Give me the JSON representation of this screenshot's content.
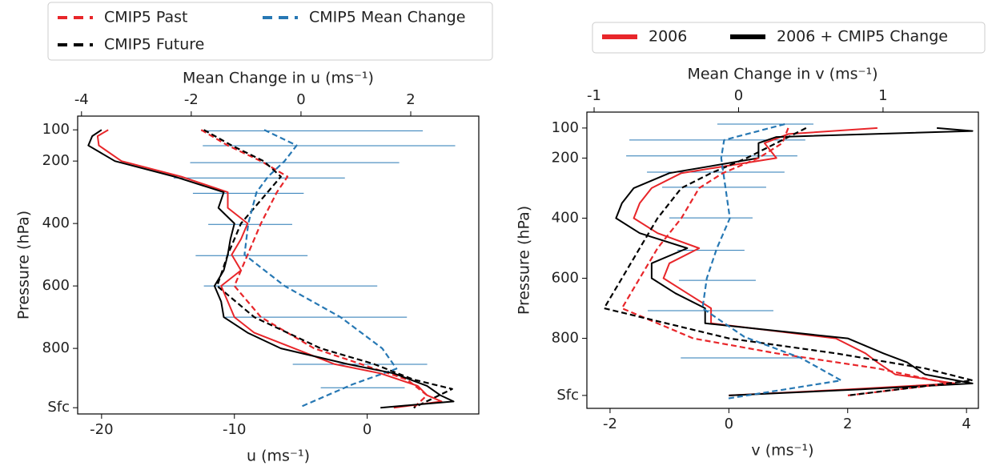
{
  "chart_data": [
    {
      "type": "line",
      "xlabel": "u (ms⁻¹)",
      "x2label": "Mean Change in u (ms⁻¹)",
      "ylabel": "Pressure (hPa)",
      "xlim": [
        -21.8,
        8.4
      ],
      "xticks": [
        -20,
        -10,
        0
      ],
      "x2lim": [
        -4.07,
        3.24
      ],
      "x2ticks": [
        -4,
        -2,
        0,
        2
      ],
      "ylim": [
        1010,
        56
      ],
      "yticks": [
        100,
        200,
        400,
        600,
        800,
        {
          "value": 990,
          "label": "Sfc"
        }
      ],
      "legend": "top-left",
      "series": [
        {
          "name": "CMIP5 Past",
          "color": "#e8262a",
          "style": "dashed",
          "x": [
            -12.5,
            -10.5,
            -8.0,
            -6.0,
            -6.8,
            -8.0,
            -9.0,
            -10.0,
            -8.0,
            -4.0,
            -0.5,
            3.0,
            4.5,
            3.5
          ],
          "y": [
            100,
            150,
            200,
            250,
            300,
            400,
            500,
            600,
            700,
            800,
            850,
            900,
            950,
            990
          ]
        },
        {
          "name": "CMIP5 Future",
          "color": "#000000",
          "style": "dashed",
          "x": [
            -12.3,
            -10.2,
            -7.8,
            -6.5,
            -7.5,
            -9.5,
            -10.5,
            -11.3,
            -8.5,
            -3.5,
            0.5,
            3.5,
            6.4,
            3.5
          ],
          "y": [
            100,
            150,
            200,
            250,
            300,
            400,
            500,
            600,
            700,
            800,
            850,
            900,
            930,
            990
          ]
        },
        {
          "name": "CMIP5 Mean Change",
          "color": "#2778b4",
          "style": "dashed",
          "axis": "x2",
          "x": [
            -0.67,
            -0.08,
            -0.3,
            -0.6,
            -0.81,
            -0.96,
            -1.03,
            -0.3,
            0.72,
            1.48,
            1.74,
            0.94,
            0.02
          ],
          "y": [
            100,
            150,
            200,
            250,
            300,
            400,
            500,
            600,
            700,
            800,
            865,
            915,
            985
          ]
        },
        {
          "color": "#e8262a",
          "style": "solid",
          "x": [
            -19.5,
            -20.3,
            -20.2,
            -18.5,
            -14,
            -10.5,
            -10.5,
            -9.0,
            -9.5,
            -10.2,
            -9.5,
            -11,
            -10.5,
            -10.0,
            -8.5,
            -5.5,
            -2.5,
            1.0,
            3.8,
            4.5,
            5.6,
            2.0
          ],
          "y": [
            100,
            120,
            150,
            200,
            250,
            300,
            350,
            400,
            450,
            500,
            550,
            600,
            650,
            700,
            750,
            800,
            850,
            880,
            920,
            950,
            970,
            990
          ]
        },
        {
          "color": "#000000",
          "style": "solid",
          "x": [
            -20.0,
            -20.7,
            -21.0,
            -19.0,
            -14.5,
            -10.8,
            -11.2,
            -10.0,
            -10.3,
            -10.5,
            -10.8,
            -11.5,
            -11.0,
            -10.8,
            -9.0,
            -6.5,
            -1.5,
            2.0,
            4.5,
            5.5,
            6.5,
            1.0
          ],
          "y": [
            100,
            120,
            150,
            200,
            250,
            300,
            350,
            400,
            450,
            500,
            550,
            600,
            650,
            700,
            750,
            800,
            850,
            880,
            920,
            950,
            970,
            990
          ]
        }
      ],
      "error_bars": {
        "color": "#2778b4",
        "axis": "x2",
        "y": [
          103,
          151,
          205,
          254,
          303,
          403,
          503,
          600,
          700,
          851,
          926
        ],
        "low": [
          -1.82,
          -1.79,
          -2.02,
          -2.32,
          -1.97,
          -1.69,
          -1.92,
          -1.77,
          -1.38,
          -0.15,
          0.36
        ],
        "high": [
          2.22,
          2.81,
          1.79,
          0.8,
          0.05,
          -0.16,
          0.12,
          1.39,
          1.93,
          2.3,
          1.89
        ]
      }
    },
    {
      "type": "line",
      "xlabel": "v (ms⁻¹)",
      "x2label": "Mean Change in v (ms⁻¹)",
      "ylabel": "Pressure (hPa)",
      "xlim": [
        -2.39,
        4.2
      ],
      "xticks": [
        -2,
        0,
        2,
        4
      ],
      "x2lim": [
        -1.05,
        1.66
      ],
      "x2ticks": [
        -1,
        0,
        1
      ],
      "ylim": [
        1033,
        47
      ],
      "yticks": [
        100,
        200,
        400,
        600,
        800,
        {
          "value": 990,
          "label": "Sfc"
        }
      ],
      "legend": "top-right",
      "series": [
        {
          "name": "2006",
          "color": "#e8262a",
          "style": "solid",
          "x": [
            2.5,
            1.0,
            0.6,
            0.8,
            -0.8,
            -1.3,
            -1.5,
            -1.6,
            -1.2,
            -0.5,
            -1.0,
            -1.1,
            -0.7,
            -0.3,
            -0.3,
            1.8,
            2.3,
            2.5,
            2.8,
            3.8,
            2.0,
            0.0
          ],
          "y": [
            100,
            120,
            150,
            200,
            250,
            300,
            350,
            400,
            450,
            500,
            550,
            600,
            650,
            700,
            750,
            800,
            850,
            880,
            920,
            950,
            970,
            990
          ]
        },
        {
          "name": "2006 + CMIP5 Change",
          "color": "#000000",
          "style": "solid",
          "x": [
            3.5,
            4.1,
            0.8,
            0.5,
            0.5,
            -1.0,
            -1.6,
            -1.8,
            -1.9,
            -1.5,
            -0.7,
            -1.3,
            -1.3,
            -0.9,
            -0.4,
            -0.4,
            2.0,
            2.6,
            3.0,
            3.3,
            4.1,
            2.2,
            0.0
          ],
          "y": [
            100,
            110,
            130,
            150,
            200,
            250,
            300,
            350,
            400,
            450,
            500,
            550,
            600,
            650,
            700,
            750,
            800,
            850,
            880,
            920,
            950,
            970,
            990
          ]
        },
        {
          "color": "#e8262a",
          "style": "dashed",
          "x": [
            1.0,
            0.9,
            0.5,
            -0.1,
            -0.5,
            -0.8,
            -1.2,
            -1.5,
            -1.8,
            -0.6,
            0.8,
            2.5,
            3.7,
            2.0
          ],
          "y": [
            100,
            150,
            200,
            250,
            300,
            400,
            500,
            600,
            700,
            800,
            850,
            900,
            950,
            990
          ]
        },
        {
          "color": "#000000",
          "style": "dashed",
          "x": [
            1.3,
            0.8,
            0.3,
            -0.3,
            -0.8,
            -1.2,
            -1.5,
            -1.8,
            -2.1,
            0.0,
            1.8,
            3.3,
            4.1,
            2.0
          ],
          "y": [
            100,
            150,
            200,
            250,
            300,
            400,
            500,
            600,
            700,
            800,
            850,
            900,
            940,
            990
          ]
        },
        {
          "color": "#2778b4",
          "style": "dashed",
          "axis": "x2",
          "x": [
            0.32,
            -0.1,
            -0.12,
            -0.06,
            -0.15,
            -0.22,
            -0.25,
            0.04,
            0.43,
            0.71,
            -0.07
          ],
          "y": [
            87,
            140,
            200,
            400,
            500,
            600,
            700,
            795,
            865,
            940,
            1000
          ]
        }
      ],
      "error_bars": {
        "color": "#2778b4",
        "axis": "x2",
        "y": [
          87,
          140,
          193,
          247,
          297,
          399,
          507,
          607,
          708,
          865
        ],
        "low": [
          -0.147,
          -0.756,
          -0.778,
          -0.634,
          -0.529,
          -0.479,
          -0.424,
          -0.413,
          -0.629,
          -0.4
        ],
        "high": [
          0.518,
          0.462,
          0.407,
          0.318,
          0.191,
          0.097,
          0.041,
          0.119,
          0.241,
          0.43
        ]
      }
    }
  ]
}
